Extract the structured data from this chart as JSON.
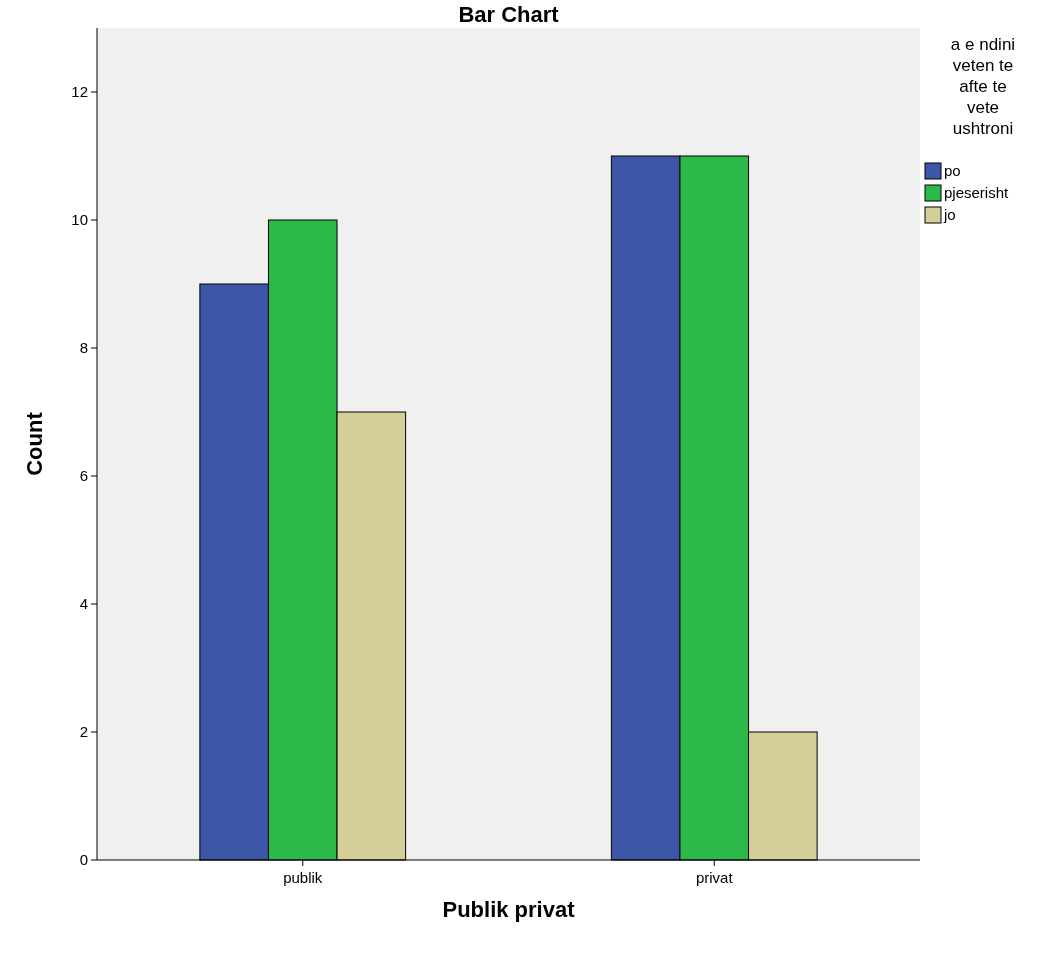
{
  "chart_data": {
    "type": "bar",
    "title": "Bar Chart",
    "xlabel": "Publik privat",
    "ylabel": "Count",
    "legend_title": "a e ndini veten te afte te vete ushtroni",
    "categories": [
      "publik",
      "privat"
    ],
    "series": [
      {
        "name": "po",
        "color": "#3d56a8",
        "values": [
          9,
          11
        ]
      },
      {
        "name": "pjeserisht",
        "color": "#2db84a",
        "values": [
          10,
          11
        ]
      },
      {
        "name": "jo",
        "color": "#d4cf98",
        "values": [
          7,
          2
        ]
      }
    ],
    "ylim": [
      0,
      13
    ],
    "yticks": [
      0,
      2,
      4,
      6,
      8,
      10,
      12
    ],
    "legend": "right"
  }
}
